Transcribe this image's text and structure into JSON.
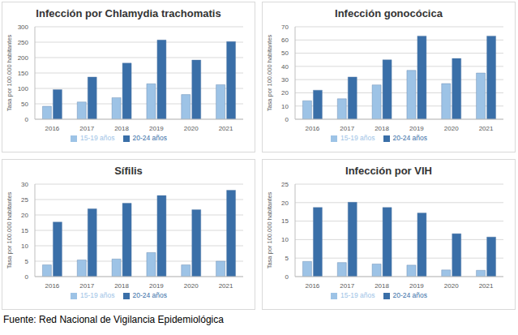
{
  "chart_data": [
    {
      "type": "bar",
      "title": "Infección por Chlamydia trachomatis",
      "y_label": "Tasa por 100.000 habitantes",
      "categories": [
        "2016",
        "2017",
        "2018",
        "2019",
        "2020",
        "2021"
      ],
      "series": [
        {
          "name": "15-19 años",
          "color": "#9dc3e6",
          "values": [
            42,
            56,
            70,
            115,
            80,
            112
          ]
        },
        {
          "name": "20-24 años",
          "color": "#3a6fa8",
          "values": [
            96,
            137,
            182,
            257,
            192,
            252
          ]
        }
      ],
      "ylim": [
        0,
        300
      ],
      "yticks": [
        0,
        50,
        100,
        150,
        200,
        250,
        300
      ],
      "grid": true,
      "legend": "bottom"
    },
    {
      "type": "bar",
      "title": "Infección gonocócica",
      "y_label": "Tasa por 100.000 habitantes",
      "categories": [
        "2016",
        "2017",
        "2018",
        "2019",
        "2020",
        "2021"
      ],
      "series": [
        {
          "name": "15-19 años",
          "color": "#9dc3e6",
          "values": [
            14,
            15.5,
            26,
            37,
            27,
            35
          ]
        },
        {
          "name": "20-24 años",
          "color": "#3a6fa8",
          "values": [
            22,
            32,
            45,
            63,
            46,
            63
          ]
        }
      ],
      "ylim": [
        0,
        70
      ],
      "yticks": [
        0,
        10,
        20,
        30,
        40,
        50,
        60,
        70
      ],
      "grid": true,
      "legend": "bottom"
    },
    {
      "type": "bar",
      "title": "Sífilis",
      "y_label": "Tasa por 100.000 habitantes",
      "categories": [
        "2016",
        "2017",
        "2018",
        "2019",
        "2020",
        "2021"
      ],
      "series": [
        {
          "name": "15-19 años",
          "color": "#9dc3e6",
          "values": [
            3.8,
            5.4,
            5.7,
            7.8,
            3.8,
            5.0
          ]
        },
        {
          "name": "20-24 años",
          "color": "#3a6fa8",
          "values": [
            17.7,
            22,
            23.8,
            26.3,
            21.7,
            28
          ]
        }
      ],
      "ylim": [
        0,
        30
      ],
      "yticks": [
        0,
        5,
        10,
        15,
        20,
        25,
        30
      ],
      "grid": true,
      "legend": "bottom"
    },
    {
      "type": "bar",
      "title": "Infección por VIH",
      "y_label": "Tasa por 100.000 habitantes",
      "categories": [
        "2016",
        "2017",
        "2018",
        "2019",
        "2020",
        "2021"
      ],
      "series": [
        {
          "name": "15-19 años",
          "color": "#9dc3e6",
          "values": [
            4.1,
            3.8,
            3.4,
            3.1,
            1.8,
            1.7
          ]
        },
        {
          "name": "20-24 años",
          "color": "#3a6fa8",
          "values": [
            18.7,
            20.1,
            18.7,
            17.2,
            11.6,
            10.7
          ]
        }
      ],
      "ylim": [
        0,
        25
      ],
      "yticks": [
        0,
        5,
        10,
        15,
        20,
        25
      ],
      "grid": true,
      "legend": "bottom"
    }
  ],
  "caption": "Fuente: Red Nacional de Vigilancia Epidemiológica"
}
